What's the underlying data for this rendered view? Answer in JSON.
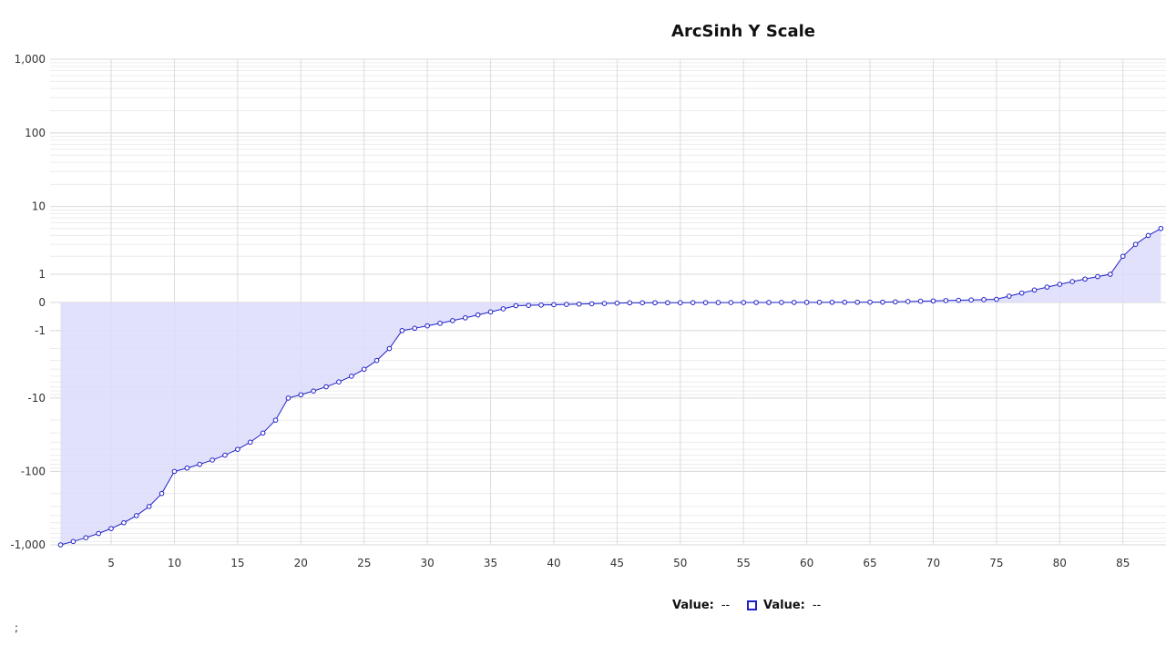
{
  "chart_data": {
    "type": "area",
    "title": "ArcSinh Y Scale",
    "y_scale": "arcsinh",
    "ylim": [
      -1000,
      1000
    ],
    "xlim": [
      1,
      88
    ],
    "grid": true,
    "x_ticks": [
      5,
      10,
      15,
      20,
      25,
      30,
      35,
      40,
      45,
      50,
      55,
      60,
      65,
      70,
      75,
      80,
      85
    ],
    "y_ticks": [
      {
        "value": 1000,
        "label": "1,000"
      },
      {
        "value": 100,
        "label": "100"
      },
      {
        "value": 10,
        "label": "10"
      },
      {
        "value": 1,
        "label": "1"
      },
      {
        "value": 0,
        "label": "0"
      },
      {
        "value": -1,
        "label": "-1"
      },
      {
        "value": -10,
        "label": "-10"
      },
      {
        "value": -100,
        "label": "-100"
      },
      {
        "value": -1000,
        "label": "-1,000"
      }
    ],
    "colors": {
      "line": "#2020c8",
      "fill": "#dcdcfa",
      "grid": "#dedede"
    },
    "series": [
      {
        "x": [
          1,
          2,
          3,
          4,
          5,
          6,
          7,
          8,
          9,
          10,
          11,
          12,
          13,
          14,
          15,
          16,
          17,
          18,
          19,
          20,
          21,
          22,
          23,
          24,
          25,
          26,
          27,
          28,
          29,
          30,
          31,
          32,
          33,
          34,
          35,
          36,
          37,
          38,
          39,
          40,
          41,
          42,
          43,
          44,
          45,
          46,
          47,
          48,
          49,
          50,
          51,
          52,
          53,
          54,
          55,
          56,
          57,
          58,
          59,
          60,
          61,
          62,
          63,
          64,
          65,
          66,
          67,
          68,
          69,
          70,
          71,
          72,
          73,
          74,
          75,
          76,
          77,
          78,
          79,
          80,
          81,
          82,
          83,
          84,
          85,
          86,
          87,
          88
        ],
        "values": [
          -1000,
          -900,
          -800,
          -700,
          -600,
          -500,
          -400,
          -300,
          -200,
          -100,
          -90,
          -80,
          -70,
          -60,
          -50,
          -40,
          -30,
          -20,
          -10,
          -9,
          -8,
          -7,
          -6,
          -5,
          -4,
          -3,
          -2,
          -1,
          -0.9,
          -0.8,
          -0.7,
          -0.6,
          -0.5,
          -0.4,
          -0.3,
          -0.2,
          -0.1,
          -0.09,
          -0.08,
          -0.07,
          -0.06,
          -0.05,
          -0.04,
          -0.03,
          -0.02,
          -0.01,
          -0.009,
          -0.008,
          -0.007,
          -0.006,
          -0.005,
          -0.004,
          -0.003,
          -0.002,
          -0.001,
          0,
          0.001,
          0.002,
          0.003,
          0.004,
          0.005,
          0.006,
          0.007,
          0.008,
          0.009,
          0.01,
          0.02,
          0.03,
          0.04,
          0.05,
          0.06,
          0.07,
          0.08,
          0.09,
          0.1,
          0.2,
          0.3,
          0.4,
          0.5,
          0.6,
          0.7,
          0.8,
          0.9,
          1,
          2,
          3,
          4,
          5
        ]
      }
    ]
  },
  "legend": {
    "items": [
      {
        "label": "Value:",
        "value": "--"
      },
      {
        "label": "Value:",
        "value": "--"
      }
    ]
  },
  "footnote": ";"
}
